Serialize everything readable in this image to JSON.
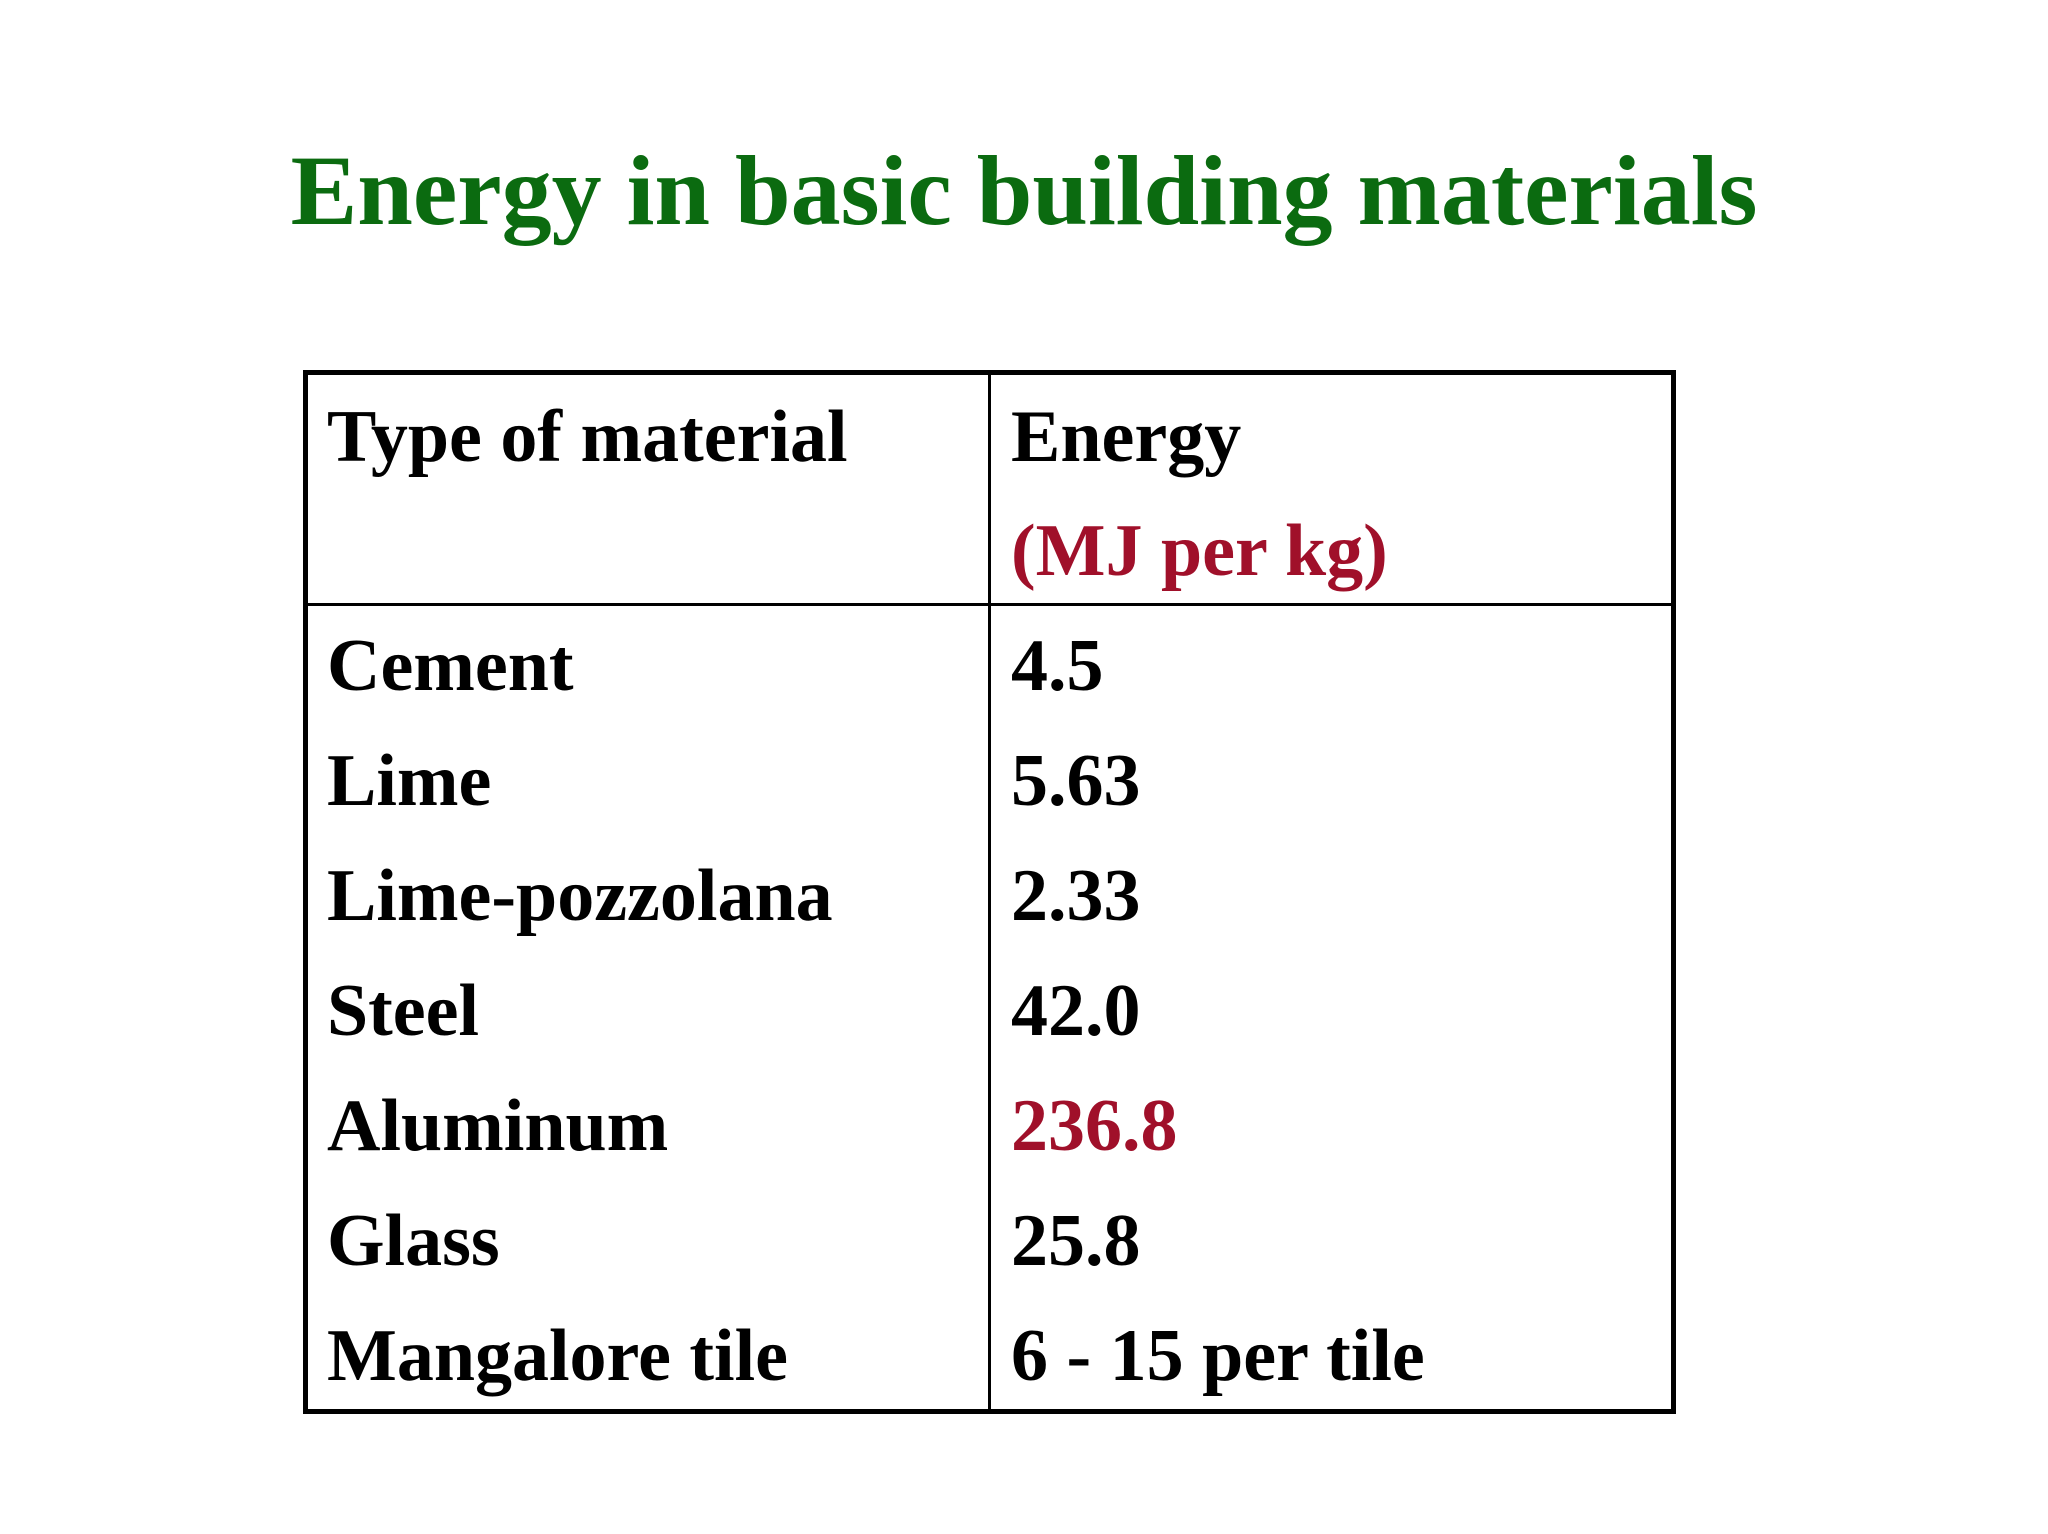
{
  "title": "Energy in basic building materials",
  "table": {
    "header": [
      "Type of material",
      "Energy"
    ],
    "unit": "(MJ per kg)",
    "rows": [
      [
        "Cement",
        "4.5"
      ],
      [
        "Lime",
        "5.63"
      ],
      [
        "Lime-pozzolana",
        "2.33"
      ],
      [
        "Steel",
        "42.0"
      ],
      [
        "Aluminum",
        "236.8"
      ],
      [
        "Glass",
        "25.8"
      ],
      [
        "Mangalore tile",
        "6 - 15 per tile"
      ]
    ]
  }
}
